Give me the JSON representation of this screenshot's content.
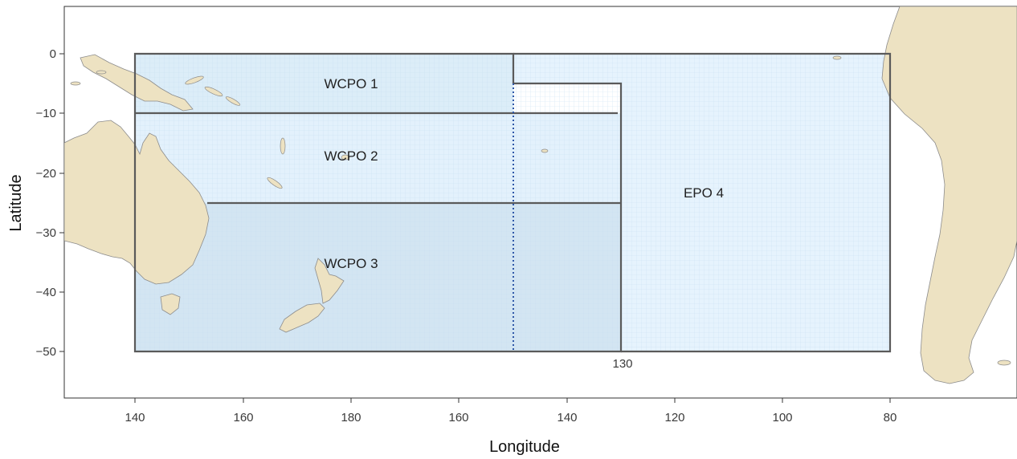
{
  "chart_data": {
    "type": "map",
    "xlabel": "Longitude",
    "ylabel": "Latitude",
    "x_ticks": [
      "140",
      "160",
      "180",
      "160",
      "140",
      "120",
      "100",
      "80"
    ],
    "y_ticks": [
      "0",
      "−10",
      "−20",
      "−30",
      "−40",
      "−50"
    ],
    "xlim_east_deg": [
      152,
      295
    ],
    "ylim_deg": [
      -58,
      8
    ],
    "grid": true,
    "regions": [
      {
        "name": "WCPO 1",
        "lon_range_east": [
          140,
          210
        ],
        "lat_range": [
          -10,
          0
        ],
        "fill": "#dcedf8"
      },
      {
        "name": "WCPO 2",
        "lon_range_east": [
          140,
          230
        ],
        "lat_range": [
          -25,
          -10
        ],
        "fill": "#e3f1fc"
      },
      {
        "name": "WCPO 3",
        "lon_range_east": [
          140,
          230
        ],
        "lat_range": [
          -50,
          -25
        ],
        "fill": "#d3e5f2"
      },
      {
        "name": "EPO 4",
        "lon_range_east": [
          210,
          280
        ],
        "lat_range": [
          -50,
          0
        ],
        "fill": "#e6f3fd"
      }
    ],
    "boundary_annotation": "130",
    "dotted_line_lon_east": 210,
    "colors": {
      "land": "#ede2c2",
      "boundary": "#5a5a5a",
      "dotted": "#2f58a8",
      "ocean_region": "#e3f1fc"
    }
  }
}
